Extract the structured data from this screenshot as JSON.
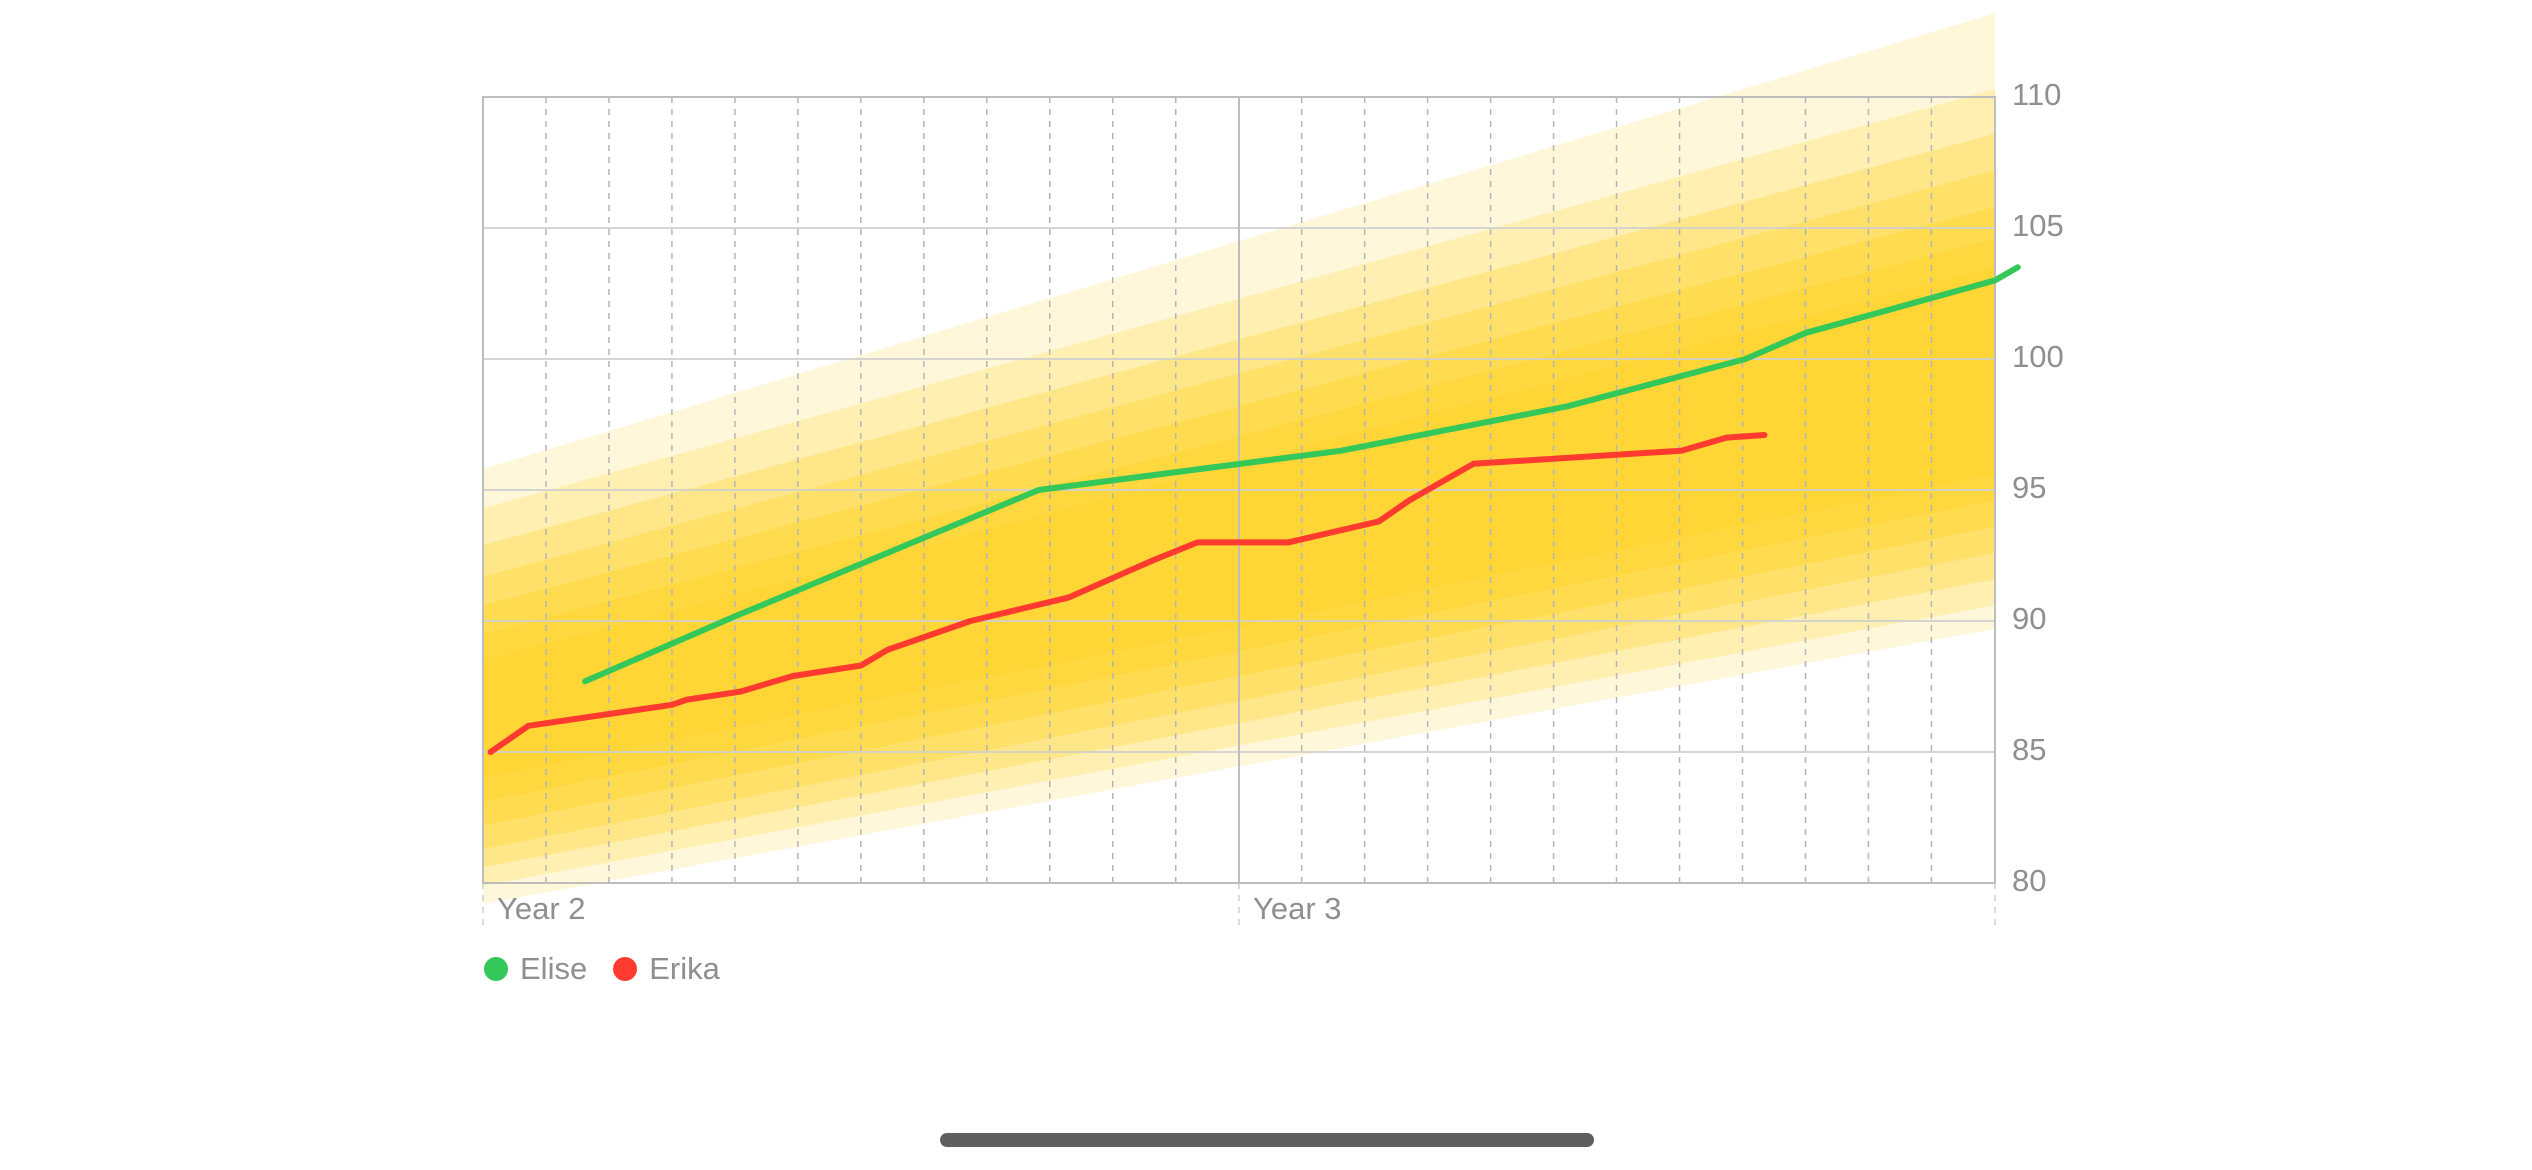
{
  "chart_data": {
    "type": "line",
    "title": "",
    "xlabel": "",
    "ylabel": "",
    "x_unit": "year",
    "xlim": [
      2,
      4
    ],
    "ylim": [
      80,
      110
    ],
    "x_ticks": [
      {
        "value": 2,
        "label": "Year 2"
      },
      {
        "value": 3,
        "label": "Year 3"
      }
    ],
    "x_minor_step": 0.0833,
    "y_ticks": [
      80,
      85,
      90,
      95,
      100,
      105,
      110
    ],
    "y_axis_position": "right",
    "grid": true,
    "legend_position": "bottom-left",
    "percentile_bands": {
      "color": "#ffd52e",
      "opacities": [
        0.18,
        0.24,
        0.3,
        0.36,
        0.42,
        0.48,
        0.56
      ],
      "x": [
        2,
        4
      ],
      "bands": [
        {
          "low": [
            79.2,
            89.7
          ],
          "high": [
            95.8,
            113.2
          ]
        },
        {
          "low": [
            79.9,
            90.6
          ],
          "high": [
            94.3,
            110.3
          ]
        },
        {
          "low": [
            80.6,
            91.6
          ],
          "high": [
            92.9,
            108.6
          ]
        },
        {
          "low": [
            81.3,
            92.6
          ],
          "high": [
            91.7,
            107.2
          ]
        },
        {
          "low": [
            82.2,
            93.6
          ],
          "high": [
            90.6,
            105.8
          ]
        },
        {
          "low": [
            83.1,
            94.6
          ],
          "high": [
            89.5,
            104.6
          ]
        },
        {
          "low": [
            84.0,
            95.6
          ],
          "high": [
            88.5,
            103.5
          ]
        }
      ]
    },
    "series": [
      {
        "name": "Elise",
        "color": "#34c759",
        "x": [
          2.135,
          2.335,
          2.735,
          3.135,
          3.435,
          3.67,
          3.75,
          4.0,
          4.03
        ],
        "y": [
          87.7,
          90.2,
          95.0,
          96.5,
          98.2,
          100.0,
          101.0,
          103.0,
          103.5
        ]
      },
      {
        "name": "Erika",
        "color": "#ff3b30",
        "x": [
          2.01,
          2.06,
          2.25,
          2.27,
          2.34,
          2.41,
          2.5,
          2.535,
          2.645,
          2.775,
          2.885,
          2.945,
          3.065,
          3.185,
          3.225,
          3.31,
          3.585,
          3.645,
          3.695
        ],
        "y": [
          85.0,
          86.0,
          86.8,
          87.0,
          87.3,
          87.9,
          88.3,
          88.9,
          90.0,
          90.9,
          92.3,
          93.0,
          93.0,
          93.8,
          94.6,
          96.0,
          96.5,
          97.0,
          97.1
        ]
      }
    ]
  },
  "legend": [
    {
      "label": "Elise",
      "color": "#34c759"
    },
    {
      "label": "Erika",
      "color": "#ff3b30"
    }
  ]
}
